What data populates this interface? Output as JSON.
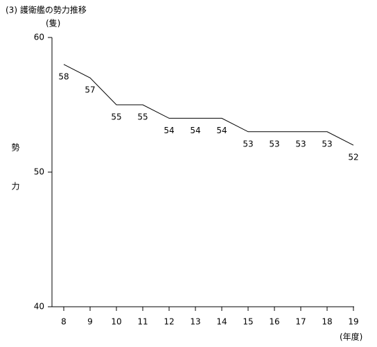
{
  "chart_data": {
    "type": "line",
    "title": "(3) 護衛艦の勢力推移",
    "y_unit": "(隻)",
    "y_label": "勢力",
    "x_label": "(年度)",
    "categories": [
      "8",
      "9",
      "10",
      "11",
      "12",
      "13",
      "14",
      "15",
      "16",
      "17",
      "18",
      "19"
    ],
    "values": [
      58,
      57,
      55,
      55,
      54,
      54,
      54,
      53,
      53,
      53,
      53,
      52
    ],
    "color": "#000000",
    "ylim": [
      40,
      60
    ],
    "yticks": [
      40,
      50,
      60
    ]
  }
}
